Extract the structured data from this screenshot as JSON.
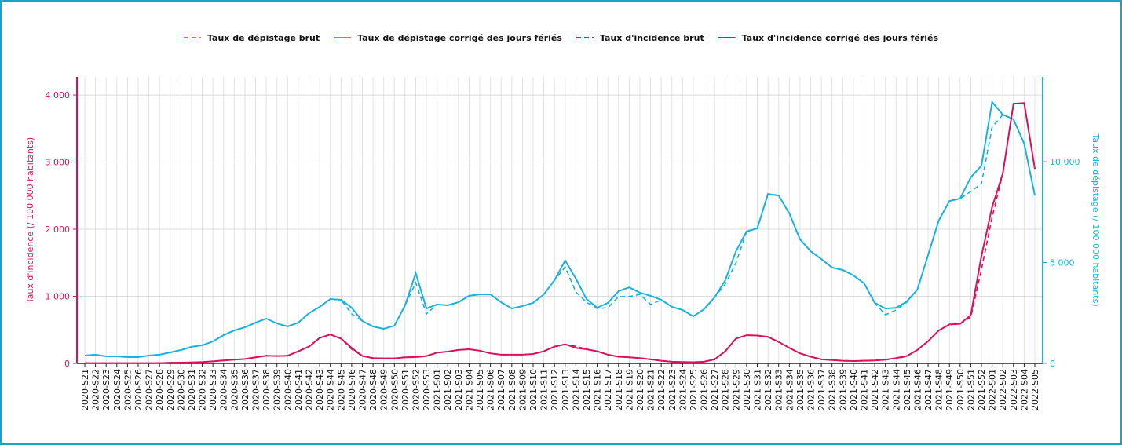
{
  "chart_data": {
    "type": "line",
    "categories": [
      "2020-S21",
      "2020-S22",
      "2020-S23",
      "2020-S24",
      "2020-S25",
      "2020-S26",
      "2020-S27",
      "2020-S28",
      "2020-S29",
      "2020-S30",
      "2020-S31",
      "2020-S32",
      "2020-S33",
      "2020-S34",
      "2020-S35",
      "2020-S36",
      "2020-S37",
      "2020-S38",
      "2020-S39",
      "2020-S40",
      "2020-S41",
      "2020-S42",
      "2020-S43",
      "2020-S44",
      "2020-S45",
      "2020-S46",
      "2020-S47",
      "2020-S48",
      "2020-S49",
      "2020-S50",
      "2020-S51",
      "2020-S52",
      "2020-S53",
      "2021-S01",
      "2021-S02",
      "2021-S03",
      "2021-S04",
      "2021-S05",
      "2021-S06",
      "2021-S07",
      "2021-S08",
      "2021-S09",
      "2021-S10",
      "2021-S11",
      "2021-S12",
      "2021-S13",
      "2021-S14",
      "2021-S15",
      "2021-S16",
      "2021-S17",
      "2021-S18",
      "2021-S19",
      "2021-S20",
      "2021-S21",
      "2021-S22",
      "2021-S23",
      "2021-S24",
      "2021-S25",
      "2021-S26",
      "2021-S27",
      "2021-S28",
      "2021-S29",
      "2021-S30",
      "2021-S31",
      "2021-S32",
      "2021-S33",
      "2021-S34",
      "2021-S35",
      "2021-S36",
      "2021-S37",
      "2021-S38",
      "2021-S39",
      "2021-S40",
      "2021-S41",
      "2021-S42",
      "2021-S43",
      "2021-S44",
      "2021-S45",
      "2021-S46",
      "2021-S47",
      "2021-S48",
      "2021-S49",
      "2021-S50",
      "2021-S51",
      "2021-S52",
      "2022-S01",
      "2022-S02",
      "2022-S03",
      "2022-S04",
      "2022-S05"
    ],
    "series": [
      {
        "name": "Taux de dépistage brut",
        "color": "#1ab3df",
        "dashed": true,
        "axis": "y2",
        "values": [
          390,
          430,
          350,
          350,
          310,
          310,
          390,
          430,
          545,
          660,
          820,
          900,
          1090,
          1400,
          1630,
          1790,
          2020,
          2220,
          1980,
          1830,
          2020,
          2490,
          2800,
          3190,
          3150,
          2450,
          2100,
          1830,
          1710,
          1870,
          2880,
          4000,
          2450,
          2920,
          2880,
          3030,
          3350,
          3420,
          3420,
          3030,
          2720,
          2840,
          3000,
          3420,
          4120,
          4780,
          3540,
          3030,
          2720,
          2760,
          3310,
          3310,
          3420,
          2920,
          3150,
          2800,
          2650,
          2330,
          2680,
          3270,
          3930,
          4980,
          6540,
          6690,
          8400,
          8320,
          7430,
          6150,
          5560,
          5170,
          4750,
          4630,
          4360,
          3970,
          3000,
          2410,
          2650,
          3030,
          3660,
          5370,
          7080,
          8050,
          8170,
          8520,
          8910,
          11710,
          12330,
          12100,
          10890,
          8320
        ]
      },
      {
        "name": "Taux de dépistage corrigé des jours fériés",
        "color": "#1ab3df",
        "dashed": false,
        "axis": "y2",
        "values": [
          390,
          430,
          350,
          350,
          310,
          310,
          390,
          430,
          545,
          660,
          820,
          900,
          1090,
          1400,
          1630,
          1790,
          2020,
          2220,
          1980,
          1830,
          2020,
          2490,
          2800,
          3190,
          3150,
          2760,
          2100,
          1830,
          1710,
          1870,
          2880,
          4470,
          2720,
          2920,
          2880,
          3030,
          3350,
          3420,
          3420,
          3030,
          2720,
          2840,
          3000,
          3420,
          4120,
          5100,
          4200,
          3190,
          2760,
          3000,
          3580,
          3770,
          3500,
          3350,
          3150,
          2800,
          2650,
          2330,
          2680,
          3270,
          4120,
          5560,
          6540,
          6690,
          8400,
          8320,
          7430,
          6150,
          5560,
          5170,
          4750,
          4630,
          4360,
          3970,
          3000,
          2720,
          2760,
          3070,
          3660,
          5370,
          7080,
          8050,
          8170,
          9220,
          9800,
          12950,
          12330,
          12100,
          10890,
          8320
        ]
      },
      {
        "name": "Taux d'incidence brut",
        "color": "#d8135c",
        "dashed": true,
        "values": [
          5,
          5,
          5,
          5,
          5,
          5,
          5,
          5,
          10,
          12,
          15,
          20,
          30,
          45,
          55,
          65,
          90,
          115,
          110,
          115,
          180,
          250,
          380,
          430,
          370,
          210,
          110,
          80,
          75,
          75,
          90,
          90,
          110,
          160,
          175,
          200,
          210,
          190,
          150,
          130,
          130,
          130,
          140,
          180,
          250,
          280,
          255,
          210,
          180,
          130,
          100,
          90,
          80,
          60,
          40,
          25,
          20,
          18,
          25,
          60,
          180,
          370,
          420,
          415,
          395,
          320,
          230,
          150,
          100,
          60,
          50,
          40,
          35,
          40,
          45,
          55,
          70,
          105,
          200,
          330,
          490,
          580,
          590,
          690,
          1400,
          2180,
          2830,
          3870,
          3880,
          2900
        ]
      },
      {
        "name": "Taux d'incidence corrigé des jours fériés",
        "color": "#d8135c",
        "dashed": false,
        "values": [
          5,
          5,
          5,
          5,
          5,
          5,
          5,
          5,
          10,
          12,
          15,
          20,
          30,
          45,
          55,
          65,
          90,
          115,
          110,
          115,
          180,
          250,
          380,
          430,
          370,
          230,
          110,
          80,
          75,
          75,
          90,
          95,
          110,
          160,
          175,
          200,
          210,
          190,
          150,
          130,
          130,
          130,
          140,
          180,
          250,
          285,
          230,
          210,
          180,
          130,
          100,
          90,
          80,
          60,
          40,
          25,
          20,
          18,
          25,
          60,
          180,
          370,
          420,
          415,
          395,
          320,
          230,
          150,
          100,
          60,
          50,
          40,
          35,
          40,
          45,
          55,
          80,
          110,
          200,
          330,
          490,
          580,
          590,
          720,
          1600,
          2330,
          2830,
          3870,
          3880,
          2900
        ]
      }
    ],
    "ylabel": "Taux d'incidence (/ 100 000 habitants)",
    "y2label": "Taux de dépistage (/ 100 000 habitants)",
    "ylim": [
      0,
      4270
    ],
    "yticks": [
      0,
      {
        "value": 1000,
        "label": "1 000"
      },
      {
        "value": 2000,
        "label": "2 000"
      },
      {
        "value": 3000,
        "label": "3 000"
      },
      {
        "value": 4000,
        "label": "4 000"
      }
    ],
    "y2lim": [
      0,
      14200
    ],
    "y2ticks": [
      0,
      {
        "value": 5000,
        "label": "5 000"
      },
      {
        "value": 10000,
        "label": "10 000"
      }
    ],
    "ycolor": "#d8135c",
    "y2color": "#1ab3df",
    "grid": true,
    "legend": "top"
  }
}
